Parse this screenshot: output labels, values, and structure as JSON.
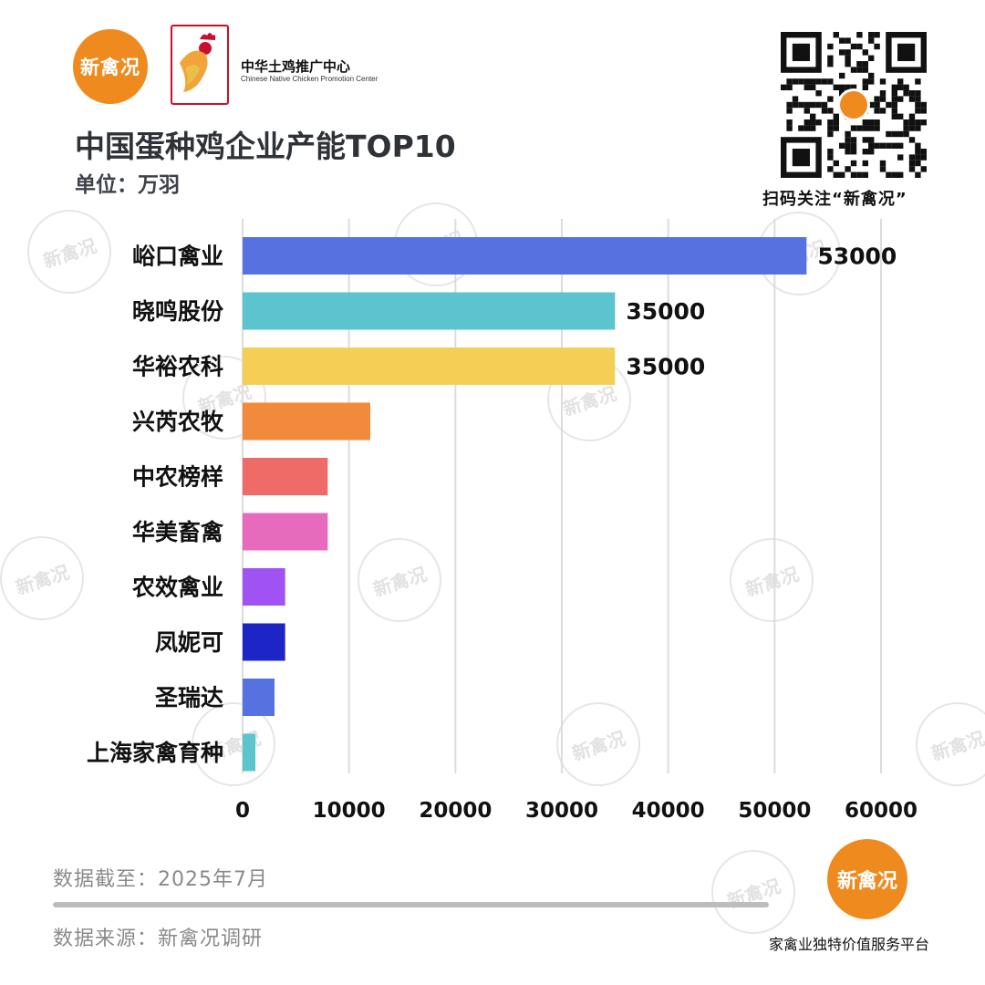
{
  "brand": {
    "logo_text": "新禽况",
    "qr_caption": "扫码关注“新禽况”",
    "slogan": "家禽业独特价值服务平台"
  },
  "org": {
    "name_cn": "中华土鸡推广中心",
    "name_en": "Chinese Native Chicken Promotion Center"
  },
  "colors": {
    "brand_orange": "#ef8a1e",
    "org_red": "#c8102e"
  },
  "chart_data": {
    "type": "bar",
    "orientation": "horizontal",
    "title": "中国蛋种鸡企业产能TOP10",
    "unit_label": "单位：万羽",
    "categories": [
      "峪口禽业",
      "晓鸣股份",
      "华裕农科",
      "兴芮农牧",
      "中农榜样",
      "华美畜禽",
      "农效禽业",
      "凤妮可",
      "圣瑞达",
      "上海家禽育种"
    ],
    "values": [
      53000,
      35000,
      35000,
      12000,
      8000,
      8000,
      4000,
      4000,
      3000,
      1200
    ],
    "data_labels": [
      "53000",
      "35000",
      "35000",
      null,
      null,
      null,
      null,
      null,
      null,
      null
    ],
    "colors": [
      "#5671e0",
      "#5bc4cf",
      "#f5cf55",
      "#f28a3e",
      "#ef6b67",
      "#e76bbd",
      "#a052f2",
      "#1d25c6",
      "#5671e0",
      "#5bc4cf"
    ],
    "xlim": [
      0,
      60000
    ],
    "x_ticks": [
      0,
      10000,
      20000,
      30000,
      40000,
      50000,
      60000
    ],
    "grid": true
  },
  "footer": {
    "date": "数据截至：2025年7月",
    "source": "数据来源：新禽况调研"
  }
}
